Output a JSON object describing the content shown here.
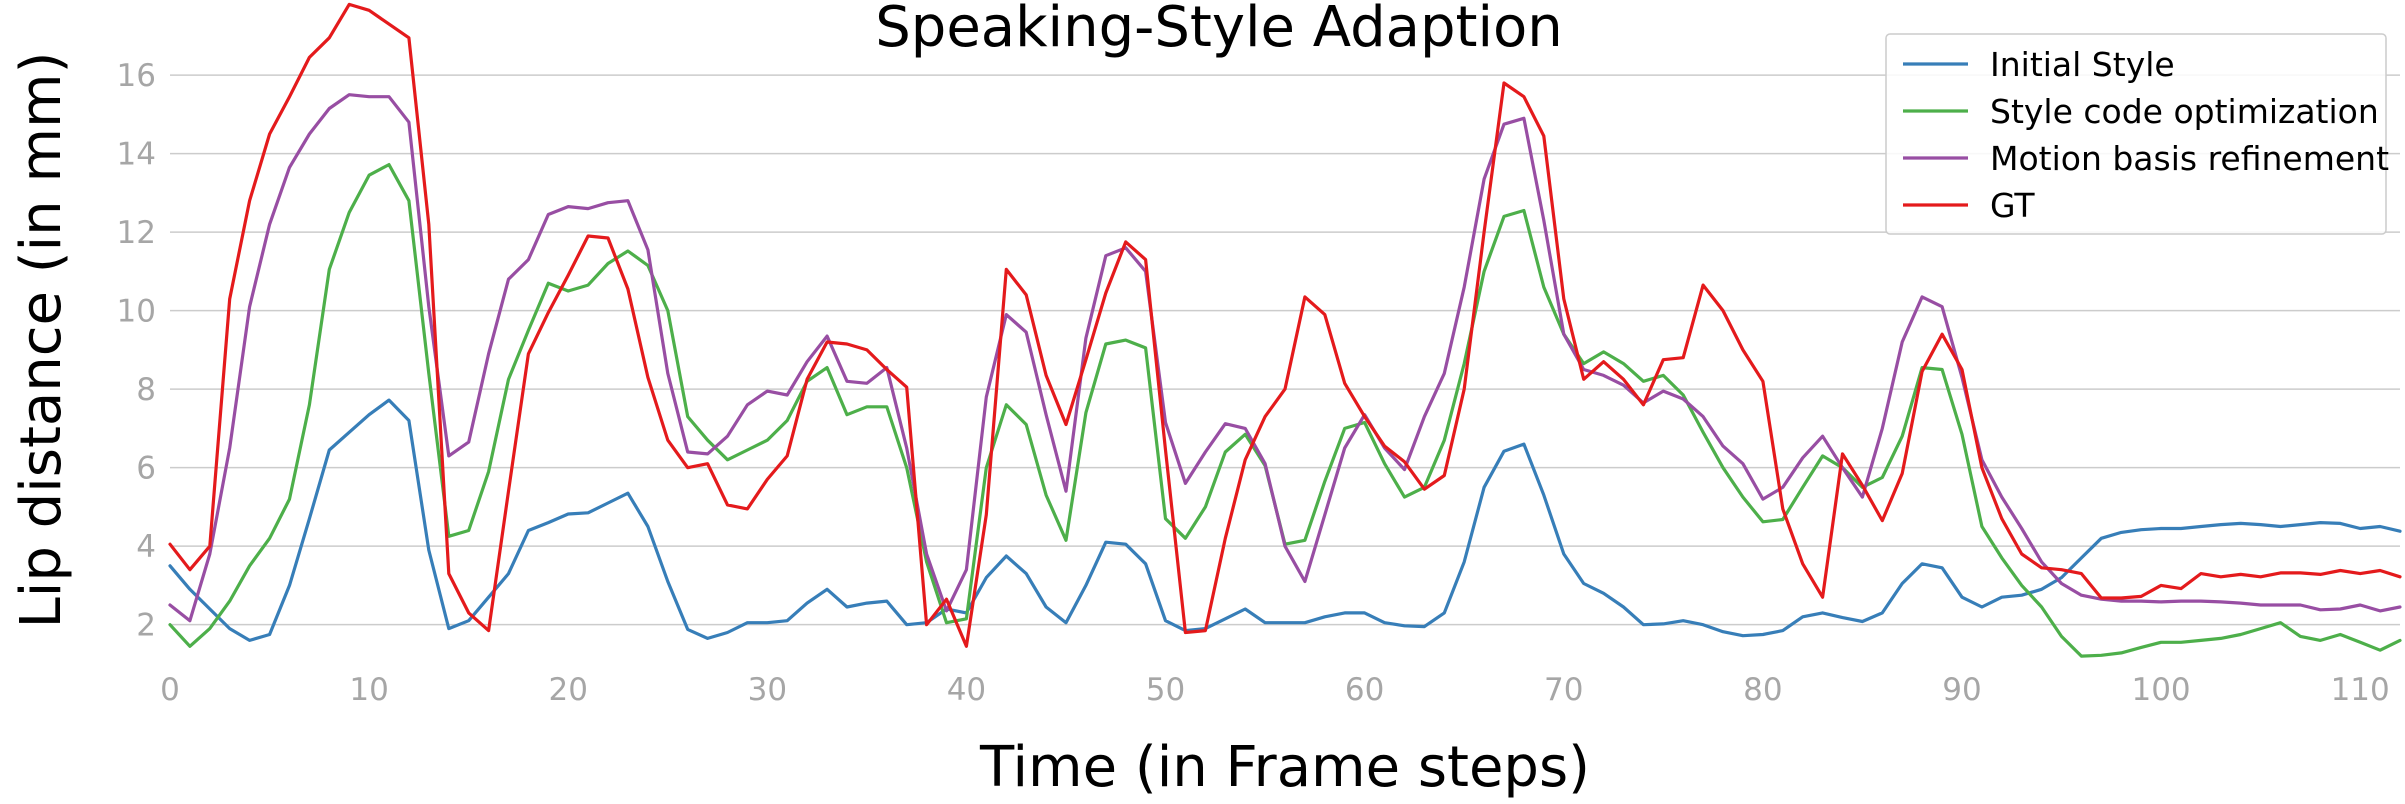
{
  "chart_data": {
    "type": "line",
    "title": "Speaking-Style Adaption",
    "xlabel": "Time (in Frame steps)",
    "ylabel": "Lip distance (in mm)",
    "xlim": [
      0,
      112
    ],
    "ylim": [
      1.1,
      17.2
    ],
    "xticks": [
      0,
      10,
      20,
      30,
      40,
      50,
      60,
      70,
      80,
      90,
      100,
      110
    ],
    "yticks": [
      2,
      4,
      6,
      8,
      10,
      12,
      14,
      16
    ],
    "grid": "horizontal",
    "legend_position": "top-right",
    "series": [
      {
        "name": "Initial Style",
        "color": "#377eb8",
        "values": [
          3.5,
          2.9,
          2.4,
          1.9,
          1.6,
          1.75,
          3.0,
          4.7,
          6.45,
          6.9,
          7.35,
          7.72,
          7.2,
          3.9,
          1.9,
          2.1,
          2.7,
          3.3,
          4.4,
          4.6,
          4.82,
          4.85,
          5.1,
          5.35,
          4.5,
          3.1,
          1.88,
          1.65,
          1.8,
          2.05,
          2.05,
          2.1,
          2.55,
          2.9,
          2.45,
          2.55,
          2.6,
          2.0,
          2.05,
          2.4,
          2.3,
          3.2,
          3.75,
          3.3,
          2.45,
          2.05,
          3.0,
          4.1,
          4.05,
          3.55,
          2.1,
          1.85,
          1.9,
          2.15,
          2.4,
          2.05,
          2.05,
          2.05,
          2.2,
          2.3,
          2.3,
          2.05,
          1.97,
          1.95,
          2.3,
          3.6,
          5.5,
          6.42,
          6.6,
          5.3,
          3.8,
          3.05,
          2.8,
          2.45,
          2.0,
          2.02,
          2.1,
          2.0,
          1.82,
          1.72,
          1.75,
          1.85,
          2.2,
          2.3,
          2.18,
          2.08,
          2.3,
          3.05,
          3.55,
          3.45,
          2.7,
          2.45,
          2.7,
          2.75,
          2.9,
          3.2,
          3.7,
          4.2,
          4.35,
          4.42,
          4.45,
          4.45,
          4.5,
          4.55,
          4.58,
          4.55,
          4.5,
          4.55,
          4.6,
          4.58,
          4.45,
          4.5,
          4.38
        ]
      },
      {
        "name": "Style code optimization",
        "color": "#4daf4a",
        "values": [
          2.0,
          1.45,
          1.9,
          2.6,
          3.5,
          4.2,
          5.2,
          7.6,
          11.05,
          12.5,
          13.45,
          13.72,
          12.8,
          8.4,
          4.25,
          4.4,
          5.9,
          8.25,
          9.5,
          10.7,
          10.5,
          10.65,
          11.2,
          11.52,
          11.15,
          10.0,
          7.3,
          6.7,
          6.2,
          6.45,
          6.7,
          7.2,
          8.2,
          8.55,
          7.35,
          7.55,
          7.55,
          6.0,
          3.6,
          2.05,
          2.15,
          6.0,
          7.6,
          7.1,
          5.3,
          4.15,
          7.4,
          9.15,
          9.25,
          9.05,
          4.7,
          4.2,
          5.0,
          6.4,
          6.85,
          6.05,
          4.05,
          4.15,
          5.65,
          7.0,
          7.15,
          6.1,
          5.25,
          5.5,
          6.7,
          8.65,
          11.0,
          12.4,
          12.55,
          10.6,
          9.4,
          8.65,
          8.95,
          8.65,
          8.2,
          8.35,
          7.85,
          6.9,
          6.0,
          5.25,
          4.62,
          4.68,
          5.5,
          6.3,
          6.0,
          5.5,
          5.75,
          6.8,
          8.55,
          8.5,
          6.85,
          4.5,
          3.7,
          3.0,
          2.45,
          1.7,
          1.2,
          1.22,
          1.28,
          1.42,
          1.55,
          1.55,
          1.6,
          1.65,
          1.75,
          1.9,
          2.05,
          1.7,
          1.6,
          1.75,
          1.55,
          1.35,
          1.6
        ]
      },
      {
        "name": "Motion basis refinement",
        "color": "#984ea3",
        "values": [
          2.5,
          2.1,
          3.8,
          6.5,
          10.1,
          12.2,
          13.65,
          14.5,
          15.15,
          15.5,
          15.45,
          15.45,
          14.8,
          10.1,
          6.3,
          6.65,
          8.9,
          10.8,
          11.3,
          12.45,
          12.65,
          12.6,
          12.75,
          12.8,
          11.55,
          8.4,
          6.4,
          6.35,
          6.8,
          7.6,
          7.95,
          7.85,
          8.7,
          9.35,
          8.2,
          8.15,
          8.55,
          6.5,
          3.8,
          2.35,
          3.4,
          7.8,
          9.9,
          9.45,
          7.35,
          5.4,
          9.3,
          11.4,
          11.6,
          11.0,
          7.15,
          5.6,
          6.4,
          7.12,
          7.0,
          6.1,
          4.0,
          3.1,
          4.8,
          6.5,
          7.35,
          6.5,
          5.95,
          7.3,
          8.4,
          10.6,
          13.35,
          14.75,
          14.9,
          12.3,
          9.4,
          8.5,
          8.35,
          8.1,
          7.65,
          7.95,
          7.75,
          7.3,
          6.55,
          6.1,
          5.2,
          5.5,
          6.25,
          6.8,
          6.0,
          5.25,
          7.0,
          9.2,
          10.35,
          10.1,
          8.3,
          6.2,
          5.25,
          4.45,
          3.6,
          3.05,
          2.75,
          2.65,
          2.6,
          2.6,
          2.58,
          2.6,
          2.6,
          2.58,
          2.55,
          2.5,
          2.5,
          2.5,
          2.38,
          2.4,
          2.5,
          2.35,
          2.45
        ]
      },
      {
        "name": "GT",
        "color": "#e41a1c",
        "values": [
          4.05,
          3.4,
          4.0,
          10.3,
          12.8,
          14.5,
          15.45,
          16.45,
          16.95,
          17.8,
          17.65,
          17.3,
          16.95,
          12.2,
          3.3,
          2.3,
          1.85,
          5.4,
          8.9,
          9.95,
          10.9,
          11.9,
          11.85,
          10.55,
          8.3,
          6.7,
          6.0,
          6.1,
          5.05,
          4.95,
          5.7,
          6.3,
          8.25,
          9.2,
          9.15,
          9.0,
          8.5,
          8.05,
          2.0,
          2.65,
          1.45,
          4.8,
          11.05,
          10.4,
          8.35,
          7.1,
          8.75,
          10.45,
          11.75,
          11.3,
          6.45,
          1.8,
          1.85,
          4.2,
          6.2,
          7.3,
          8.0,
          10.35,
          9.9,
          8.15,
          7.3,
          6.55,
          6.15,
          5.45,
          5.8,
          8.0,
          12.0,
          15.8,
          15.45,
          14.45,
          10.3,
          8.25,
          8.7,
          8.25,
          7.6,
          8.75,
          8.8,
          10.65,
          10.0,
          9.0,
          8.2,
          4.95,
          3.55,
          2.7,
          6.35,
          5.55,
          4.65,
          5.85,
          8.45,
          9.4,
          8.5,
          6.0,
          4.7,
          3.8,
          3.45,
          3.4,
          3.3,
          2.68,
          2.68,
          2.72,
          3.0,
          2.92,
          3.3,
          3.22,
          3.28,
          3.22,
          3.32,
          3.32,
          3.28,
          3.38,
          3.3,
          3.38,
          3.22
        ]
      }
    ]
  }
}
